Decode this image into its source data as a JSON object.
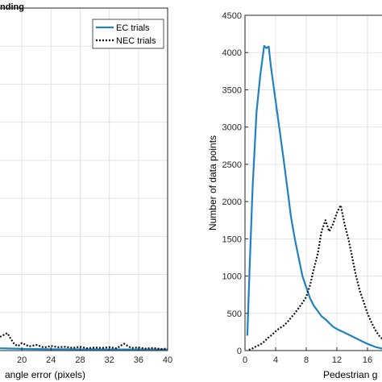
{
  "colors": {
    "ec": "#1f82c0",
    "nec": "#111111"
  },
  "chart_data": [
    {
      "type": "line",
      "title": "nding",
      "xlabel": "angle error (pixels)",
      "ylabel": "",
      "xlim": [
        17,
        40
      ],
      "ylim": [
        0,
        4500
      ],
      "xticks": [
        20,
        24,
        28,
        32,
        36,
        40
      ],
      "xtick_labels": [
        "20",
        "24",
        "28",
        "32",
        "36",
        "40"
      ],
      "grid": true,
      "legend": "top-right",
      "series": [
        {
          "name": "EC trials",
          "style": "solid",
          "x": [
            17,
            18,
            19,
            20,
            22,
            24,
            26,
            28,
            30,
            32,
            34,
            36,
            38,
            40
          ],
          "y": [
            30,
            28,
            25,
            22,
            20,
            18,
            18,
            16,
            16,
            15,
            15,
            14,
            14,
            14
          ]
        },
        {
          "name": "NEC trials",
          "style": "dotted",
          "x": [
            17,
            18,
            18.5,
            19,
            19.5,
            20,
            21,
            22,
            23,
            24,
            25,
            26,
            27,
            28,
            29,
            30,
            31,
            32,
            33,
            34,
            35,
            36,
            37,
            38,
            39,
            40
          ],
          "y": [
            180,
            230,
            150,
            80,
            60,
            100,
            55,
            75,
            40,
            60,
            45,
            50,
            35,
            50,
            30,
            40,
            35,
            45,
            30,
            90,
            35,
            40,
            25,
            35,
            20,
            25
          ]
        }
      ]
    },
    {
      "type": "line",
      "title": "",
      "xlabel": "Pedestrian g",
      "ylabel": "Number of data points",
      "xlim": [
        0,
        18
      ],
      "ylim": [
        0,
        4500
      ],
      "xticks": [
        0,
        4,
        8,
        12,
        16
      ],
      "xtick_labels": [
        "0",
        "4",
        "8",
        "12",
        "16"
      ],
      "yticks": [
        0,
        500,
        1000,
        1500,
        2000,
        2500,
        3000,
        3500,
        4000,
        4500
      ],
      "ytick_labels": [
        "0",
        "500",
        "1000",
        "1500",
        "2000",
        "2500",
        "3000",
        "3500",
        "4000",
        "4500"
      ],
      "grid": true,
      "series": [
        {
          "name": "EC trials",
          "style": "solid",
          "x": [
            0.3,
            0.6,
            1.0,
            1.5,
            2.0,
            2.5,
            2.8,
            3.1,
            3.4,
            3.8,
            4.2,
            4.6,
            5.0,
            5.5,
            6.0,
            6.5,
            7.0,
            7.5,
            8.0,
            8.5,
            9.0,
            9.5,
            10.0,
            10.5,
            11.0,
            11.5,
            12.0,
            13.0,
            14.0,
            15.0,
            16.0,
            17.0,
            18.0
          ],
          "y": [
            200,
            1100,
            2200,
            3200,
            3700,
            4090,
            4060,
            4080,
            3800,
            3500,
            3200,
            2900,
            2600,
            2200,
            1800,
            1500,
            1250,
            1000,
            850,
            700,
            600,
            530,
            460,
            420,
            370,
            320,
            290,
            240,
            190,
            140,
            90,
            50,
            25
          ]
        },
        {
          "name": "NEC trials",
          "style": "dotted",
          "x": [
            0.5,
            1.0,
            1.5,
            2.0,
            2.5,
            3.0,
            3.5,
            4.0,
            4.5,
            5.0,
            5.5,
            6.0,
            6.5,
            7.0,
            7.5,
            8.0,
            8.5,
            9.0,
            9.5,
            10.0,
            10.5,
            11.0,
            11.5,
            12.0,
            12.5,
            13.0,
            13.5,
            14.0,
            14.5,
            15.0,
            15.5,
            16.0,
            16.5,
            17.0,
            17.5,
            18.0
          ],
          "y": [
            10,
            30,
            60,
            80,
            120,
            170,
            210,
            260,
            300,
            330,
            380,
            440,
            500,
            570,
            640,
            720,
            880,
            1100,
            1300,
            1600,
            1750,
            1600,
            1700,
            1850,
            1950,
            1700,
            1500,
            1250,
            1000,
            800,
            650,
            500,
            380,
            280,
            200,
            150
          ]
        }
      ]
    }
  ]
}
